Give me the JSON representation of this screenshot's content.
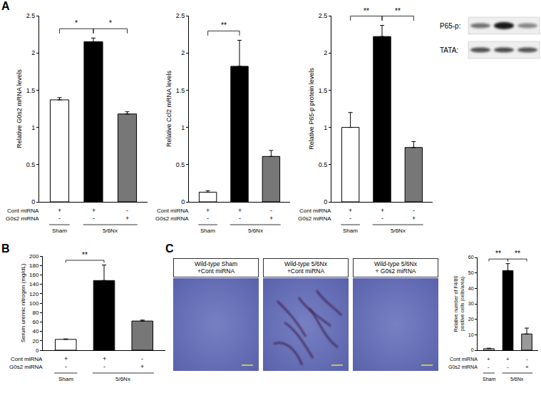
{
  "panel_labels": [
    "A",
    "B",
    "C"
  ],
  "chart_data": [
    {
      "type": "bar",
      "y_label": "Relative G0s2 mRNA levels",
      "categories": [
        null,
        null,
        null
      ],
      "values": [
        1.37,
        2.15,
        1.18
      ],
      "errors": [
        0.03,
        0.05,
        0.03
      ],
      "colors": [
        "#ffffff",
        "#000000",
        "#777777"
      ],
      "ylim": [
        0,
        2.5
      ],
      "yticks": [
        0,
        0.5,
        1,
        1.5,
        2,
        2.5
      ],
      "grid": false,
      "tick_labels": "y",
      "significance": [
        {
          "from": 0,
          "to": 1,
          "label": "*"
        },
        {
          "from": 1,
          "to": 2,
          "label": "*"
        }
      ],
      "conditions": {
        "rows": [
          {
            "label": "Cont miRNA",
            "marks": [
              "+",
              "+",
              "-"
            ]
          },
          {
            "label": "G0s2 miRNA",
            "marks": [
              "-",
              "-",
              "+"
            ]
          }
        ],
        "groups": [
          {
            "label": "Sham",
            "bars": [
              0
            ]
          },
          {
            "label": "5/6Nx",
            "bars": [
              1,
              2
            ]
          }
        ]
      }
    },
    {
      "type": "bar",
      "y_label": "Relative Ccl2 mRNA levels",
      "categories": [
        null,
        null,
        null
      ],
      "values": [
        0.13,
        1.82,
        0.61
      ],
      "errors": [
        0.02,
        0.35,
        0.08
      ],
      "colors": [
        "#ffffff",
        "#000000",
        "#777777"
      ],
      "ylim": [
        0,
        2.5
      ],
      "yticks": [
        0,
        0.5,
        1,
        1.5,
        2,
        2.5
      ],
      "grid": false,
      "tick_labels": "y",
      "significance": [
        {
          "from": 0,
          "to": 1,
          "label": "**"
        }
      ],
      "conditions": {
        "rows": [
          {
            "label": "Cont miRNA",
            "marks": [
              "+",
              "+",
              "-"
            ]
          },
          {
            "label": "G0s2 miRNA",
            "marks": [
              "-",
              "-",
              "+"
            ]
          }
        ],
        "groups": [
          {
            "label": "Sham",
            "bars": [
              0
            ]
          },
          {
            "label": "5/6Nx",
            "bars": [
              1,
              2
            ]
          }
        ]
      }
    },
    {
      "type": "bar",
      "y_label": "Relative P65-p protein levels",
      "categories": [
        null,
        null,
        null
      ],
      "values": [
        1.0,
        2.22,
        0.73
      ],
      "errors": [
        0.2,
        0.15,
        0.08
      ],
      "colors": [
        "#ffffff",
        "#000000",
        "#777777"
      ],
      "ylim": [
        0,
        2.5
      ],
      "yticks": [
        0,
        0.5,
        1,
        1.5,
        2,
        2.5
      ],
      "grid": false,
      "tick_labels": "y",
      "significance": [
        {
          "from": 0,
          "to": 1,
          "label": "**"
        },
        {
          "from": 1,
          "to": 2,
          "label": "**"
        }
      ],
      "conditions": {
        "rows": [
          {
            "label": "Cont miRNA",
            "marks": [
              "+",
              "+",
              "-"
            ]
          },
          {
            "label": "G0s2 miRNA",
            "marks": [
              "-",
              "-",
              "+"
            ]
          }
        ],
        "groups": [
          {
            "label": "Sham",
            "bars": [
              0
            ]
          },
          {
            "label": "5/6Nx",
            "bars": [
              1,
              2
            ]
          }
        ]
      }
    },
    {
      "type": "bar",
      "y_label": "Serum uremic nitrogen (mg/dL)",
      "categories": [
        null,
        null,
        null
      ],
      "values": [
        23,
        148,
        62
      ],
      "errors": [
        1,
        33,
        2
      ],
      "colors": [
        "#ffffff",
        "#000000",
        "#777777"
      ],
      "ylim": [
        0,
        200
      ],
      "yticks": [
        0,
        20,
        40,
        60,
        80,
        100,
        120,
        140,
        160,
        180,
        200
      ],
      "grid": false,
      "tick_labels": "y",
      "significance": [
        {
          "from": 0,
          "to": 1,
          "label": "**"
        }
      ],
      "conditions": {
        "rows": [
          {
            "label": "Cont miRNA",
            "marks": [
              "+",
              "+",
              "-"
            ]
          },
          {
            "label": "G0s2 miRNA",
            "marks": [
              "-",
              "-",
              "+"
            ]
          }
        ],
        "groups": [
          {
            "label": "Sham",
            "bars": [
              0
            ]
          },
          {
            "label": "5/6Nx",
            "bars": [
              1,
              2
            ]
          }
        ]
      }
    },
    {
      "type": "bar",
      "y_label": "Relative number of F4/80 positive cells (cells/area)",
      "categories": [
        null,
        null,
        null
      ],
      "values": [
        1,
        51.5,
        10.5
      ],
      "errors": [
        0.3,
        4.5,
        3.8
      ],
      "colors": [
        "#ffffff",
        "#000000",
        "#999999"
      ],
      "ylim": [
        0,
        60
      ],
      "yticks": [
        0,
        10,
        20,
        30,
        40,
        50,
        60
      ],
      "grid": false,
      "tick_labels": "y",
      "significance": [
        {
          "from": 0,
          "to": 1,
          "label": "**"
        },
        {
          "from": 1,
          "to": 2,
          "label": "**"
        }
      ],
      "conditions": {
        "rows": [
          {
            "label": "Cont miRNA",
            "marks": [
              "+",
              "+",
              "-"
            ]
          },
          {
            "label": "G0s2 miRNA",
            "marks": [
              "-",
              "-",
              "+"
            ]
          }
        ],
        "groups": [
          {
            "label": "Sham",
            "bars": [
              0
            ]
          },
          {
            "label": "5/6Nx",
            "bars": [
              1,
              2
            ]
          }
        ]
      }
    }
  ],
  "blot": {
    "rows": [
      {
        "label": "P65-p:"
      },
      {
        "label": "TATA:"
      }
    ]
  },
  "micrographs": {
    "titles": [
      [
        "Wild-type Sham",
        "+Cont miRNA"
      ],
      [
        "Wild-type 5/6Nx",
        "+Cont miRNA"
      ],
      [
        "Wild-type 5/6Nx",
        "+ G0s2 miRNA"
      ]
    ]
  }
}
